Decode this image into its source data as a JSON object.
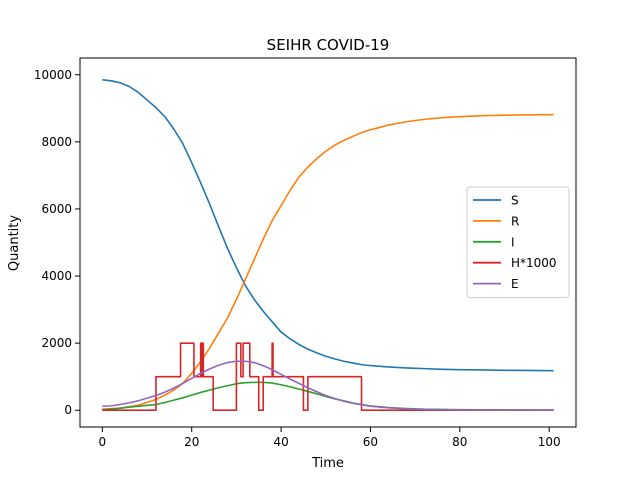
{
  "chart_data": {
    "type": "line",
    "title": "SEIHR COVID-19",
    "xlabel": "Time",
    "ylabel": "Quantity",
    "xlim": [
      -5,
      106
    ],
    "ylim": [
      -500,
      10500
    ],
    "xticks": [
      0,
      20,
      40,
      60,
      80,
      100
    ],
    "yticks": [
      0,
      2000,
      4000,
      6000,
      8000,
      10000
    ],
    "grid": false,
    "legend_position": "center-right",
    "series": [
      {
        "name": "S",
        "color": "#1f77b4",
        "step": false,
        "points": [
          [
            0,
            9850
          ],
          [
            2,
            9820
          ],
          [
            4,
            9760
          ],
          [
            6,
            9650
          ],
          [
            8,
            9480
          ],
          [
            10,
            9250
          ],
          [
            12,
            9020
          ],
          [
            14,
            8750
          ],
          [
            16,
            8380
          ],
          [
            18,
            7950
          ],
          [
            20,
            7380
          ],
          [
            22,
            6780
          ],
          [
            24,
            6150
          ],
          [
            26,
            5480
          ],
          [
            28,
            4830
          ],
          [
            30,
            4250
          ],
          [
            32,
            3720
          ],
          [
            34,
            3300
          ],
          [
            36,
            2950
          ],
          [
            38,
            2640
          ],
          [
            40,
            2330
          ],
          [
            42,
            2130
          ],
          [
            44,
            1960
          ],
          [
            46,
            1820
          ],
          [
            48,
            1710
          ],
          [
            50,
            1610
          ],
          [
            52,
            1530
          ],
          [
            54,
            1460
          ],
          [
            56,
            1410
          ],
          [
            58,
            1360
          ],
          [
            60,
            1330
          ],
          [
            64,
            1290
          ],
          [
            68,
            1260
          ],
          [
            72,
            1240
          ],
          [
            76,
            1220
          ],
          [
            80,
            1210
          ],
          [
            85,
            1200
          ],
          [
            90,
            1190
          ],
          [
            95,
            1185
          ],
          [
            101,
            1180
          ]
        ]
      },
      {
        "name": "R",
        "color": "#ff7f0e",
        "step": false,
        "points": [
          [
            0,
            30
          ],
          [
            4,
            60
          ],
          [
            8,
            150
          ],
          [
            12,
            320
          ],
          [
            14,
            450
          ],
          [
            16,
            600
          ],
          [
            18,
            800
          ],
          [
            20,
            1100
          ],
          [
            22,
            1450
          ],
          [
            24,
            1850
          ],
          [
            26,
            2300
          ],
          [
            28,
            2750
          ],
          [
            30,
            3300
          ],
          [
            32,
            3900
          ],
          [
            34,
            4500
          ],
          [
            36,
            5100
          ],
          [
            38,
            5650
          ],
          [
            40,
            6100
          ],
          [
            42,
            6550
          ],
          [
            44,
            6950
          ],
          [
            46,
            7250
          ],
          [
            48,
            7500
          ],
          [
            50,
            7720
          ],
          [
            52,
            7900
          ],
          [
            54,
            8040
          ],
          [
            56,
            8160
          ],
          [
            58,
            8280
          ],
          [
            60,
            8360
          ],
          [
            64,
            8500
          ],
          [
            68,
            8600
          ],
          [
            72,
            8670
          ],
          [
            76,
            8720
          ],
          [
            80,
            8750
          ],
          [
            85,
            8780
          ],
          [
            90,
            8795
          ],
          [
            95,
            8805
          ],
          [
            101,
            8810
          ]
        ]
      },
      {
        "name": "I",
        "color": "#2ca02c",
        "step": false,
        "points": [
          [
            0,
            10
          ],
          [
            4,
            60
          ],
          [
            8,
            120
          ],
          [
            12,
            170
          ],
          [
            14,
            230
          ],
          [
            16,
            300
          ],
          [
            18,
            370
          ],
          [
            20,
            450
          ],
          [
            22,
            530
          ],
          [
            24,
            600
          ],
          [
            26,
            670
          ],
          [
            28,
            730
          ],
          [
            30,
            790
          ],
          [
            32,
            820
          ],
          [
            34,
            830
          ],
          [
            36,
            830
          ],
          [
            38,
            810
          ],
          [
            40,
            760
          ],
          [
            42,
            700
          ],
          [
            44,
            630
          ],
          [
            46,
            560
          ],
          [
            48,
            490
          ],
          [
            50,
            410
          ],
          [
            52,
            340
          ],
          [
            54,
            280
          ],
          [
            56,
            220
          ],
          [
            58,
            170
          ],
          [
            60,
            130
          ],
          [
            64,
            80
          ],
          [
            68,
            50
          ],
          [
            72,
            30
          ],
          [
            80,
            15
          ],
          [
            90,
            8
          ],
          [
            101,
            5
          ]
        ]
      },
      {
        "name": "H*1000",
        "color": "#d62728",
        "step": true,
        "points": [
          [
            0,
            0
          ],
          [
            12,
            0
          ],
          [
            12,
            1000
          ],
          [
            17.5,
            1000
          ],
          [
            17.5,
            2000
          ],
          [
            20.5,
            2000
          ],
          [
            20.5,
            1000
          ],
          [
            22,
            1000
          ],
          [
            22,
            2000
          ],
          [
            22.2,
            2000
          ],
          [
            22.2,
            1000
          ],
          [
            22.4,
            1000
          ],
          [
            22.4,
            2000
          ],
          [
            22.6,
            2000
          ],
          [
            22.6,
            1000
          ],
          [
            24.8,
            1000
          ],
          [
            24.8,
            0
          ],
          [
            30,
            0
          ],
          [
            30,
            2000
          ],
          [
            31,
            2000
          ],
          [
            31,
            1000
          ],
          [
            31.5,
            1000
          ],
          [
            31.5,
            2000
          ],
          [
            33,
            2000
          ],
          [
            33,
            1000
          ],
          [
            35,
            1000
          ],
          [
            35,
            0
          ],
          [
            36,
            0
          ],
          [
            36,
            1000
          ],
          [
            38,
            1000
          ],
          [
            38,
            2000
          ],
          [
            38.2,
            2000
          ],
          [
            38.2,
            1000
          ],
          [
            45,
            1000
          ],
          [
            45,
            0
          ],
          [
            46,
            0
          ],
          [
            46,
            1000
          ],
          [
            58,
            1000
          ],
          [
            58,
            0
          ],
          [
            101,
            0
          ]
        ]
      },
      {
        "name": "E",
        "color": "#9467bd",
        "step": false,
        "points": [
          [
            0,
            120
          ],
          [
            2,
            130
          ],
          [
            4,
            170
          ],
          [
            6,
            220
          ],
          [
            8,
            280
          ],
          [
            10,
            360
          ],
          [
            12,
            440
          ],
          [
            14,
            540
          ],
          [
            16,
            660
          ],
          [
            18,
            800
          ],
          [
            20,
            950
          ],
          [
            22,
            1100
          ],
          [
            24,
            1230
          ],
          [
            26,
            1340
          ],
          [
            28,
            1420
          ],
          [
            30,
            1460
          ],
          [
            32,
            1460
          ],
          [
            34,
            1420
          ],
          [
            36,
            1330
          ],
          [
            38,
            1210
          ],
          [
            40,
            1070
          ],
          [
            42,
            930
          ],
          [
            44,
            800
          ],
          [
            46,
            670
          ],
          [
            48,
            550
          ],
          [
            50,
            440
          ],
          [
            52,
            350
          ],
          [
            54,
            270
          ],
          [
            56,
            210
          ],
          [
            58,
            160
          ],
          [
            60,
            120
          ],
          [
            64,
            70
          ],
          [
            68,
            40
          ],
          [
            72,
            25
          ],
          [
            80,
            10
          ],
          [
            90,
            5
          ],
          [
            101,
            3
          ]
        ]
      }
    ]
  }
}
